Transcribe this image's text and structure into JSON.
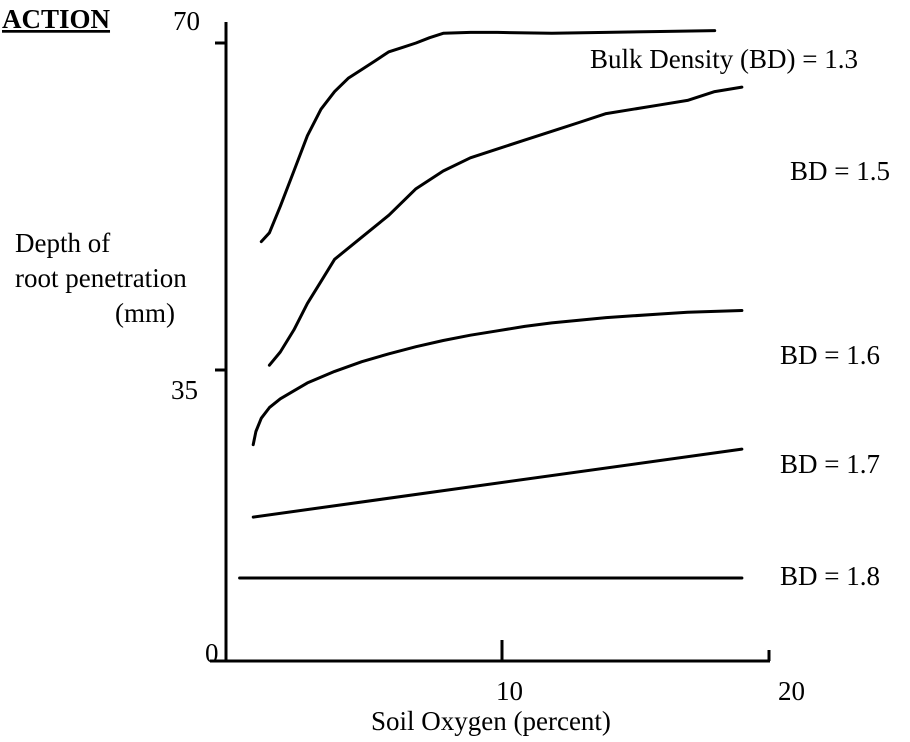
{
  "chart_data": {
    "type": "line",
    "heading": "ACTION",
    "title": "",
    "xlabel": "Soil Oxygen (percent)",
    "ylabel": [
      "Depth of",
      "root penetration",
      "(mm)"
    ],
    "xlim": [
      0,
      20
    ],
    "ylim": [
      0,
      70
    ],
    "x_ticks": [
      {
        "value": 10,
        "label": "10"
      },
      {
        "value": 20,
        "label": "20"
      }
    ],
    "y_ticks": [
      {
        "value": 0,
        "label": "0"
      },
      {
        "value": 35,
        "label": "35"
      },
      {
        "value": 70,
        "label": "70"
      }
    ],
    "grid": false,
    "legend": "none",
    "series": [
      {
        "name": "Bulk Density (BD) = 1.3",
        "x": [
          1.3,
          1.6,
          2.0,
          2.5,
          3.0,
          3.5,
          4.0,
          4.5,
          5.0,
          5.5,
          6.0,
          6.5,
          7.0,
          7.5,
          8.0,
          9.0,
          10.0,
          12.0,
          14.0,
          16.0,
          18.0
        ],
        "y": [
          47.5,
          48.5,
          51.5,
          55.5,
          59.5,
          62.5,
          64.5,
          66.0,
          67.0,
          68.0,
          69.0,
          69.5,
          70.0,
          70.6,
          71.1,
          71.2,
          71.2,
          71.1,
          71.2,
          71.3,
          71.4
        ]
      },
      {
        "name": "BD = 1.5",
        "x": [
          1.6,
          2.0,
          2.5,
          3.0,
          3.5,
          4.0,
          5.0,
          6.0,
          7.0,
          8.0,
          9.0,
          10.0,
          11.0,
          12.0,
          13.0,
          14.0,
          15.0,
          16.0,
          17.0,
          18.0,
          19.0
        ],
        "y": [
          33.5,
          35.0,
          37.5,
          40.5,
          43.0,
          45.5,
          48.0,
          50.5,
          53.5,
          55.5,
          57.0,
          58.0,
          59.0,
          60.0,
          61.0,
          62.0,
          62.5,
          63.0,
          63.5,
          64.5,
          65.0
        ]
      },
      {
        "name": "BD = 1.6",
        "x": [
          1.0,
          1.1,
          1.3,
          1.6,
          2.0,
          2.5,
          3.0,
          4.0,
          5.0,
          6.0,
          7.0,
          8.0,
          9.0,
          10.0,
          11.0,
          12.0,
          13.0,
          14.0,
          15.0,
          16.0,
          17.0,
          18.0,
          19.0
        ],
        "y": [
          24.5,
          26.0,
          27.5,
          28.7,
          29.7,
          30.6,
          31.5,
          32.8,
          33.9,
          34.8,
          35.6,
          36.3,
          36.9,
          37.4,
          37.9,
          38.3,
          38.6,
          38.9,
          39.1,
          39.3,
          39.5,
          39.6,
          39.7
        ]
      },
      {
        "name": "BD = 1.7",
        "x": [
          1.0,
          19.0
        ],
        "y": [
          16.3,
          24.0
        ]
      },
      {
        "name": "BD = 1.8",
        "x": [
          0.5,
          19.0
        ],
        "y": [
          9.4,
          9.4
        ]
      }
    ]
  }
}
